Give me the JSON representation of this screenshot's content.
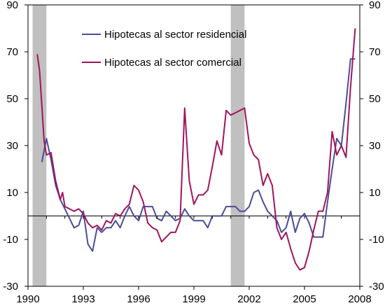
{
  "chart_data": {
    "type": "line",
    "title": "",
    "xlabel": "",
    "ylabel": "",
    "xlim": [
      1990,
      2008
    ],
    "ylim": [
      -30,
      90
    ],
    "x_ticks": [
      1990,
      1993,
      1996,
      1999,
      2002,
      2005,
      2008
    ],
    "x_tick_labels": [
      "1990",
      "1993",
      "1996",
      "1999",
      "2002",
      "2005",
      "2008"
    ],
    "y_ticks": [
      -30,
      -10,
      10,
      30,
      50,
      70,
      90
    ],
    "y_tick_labels": [
      "-30",
      "-10",
      "10",
      "30",
      "50",
      "70",
      "90"
    ],
    "grid": false,
    "zero_line": true,
    "legend_position": "top-center",
    "recession_shading": [
      [
        1990.25,
        1991.0
      ],
      [
        2001.0,
        2001.75
      ]
    ],
    "series": [
      {
        "name": "Hipotecas al sector residencial",
        "color": "#4b4c9a",
        "x": [
          1990.75,
          1991.0,
          1991.25,
          1991.5,
          1991.75,
          1992.0,
          1992.25,
          1992.5,
          1992.75,
          1993.0,
          1993.25,
          1993.5,
          1993.75,
          1994.0,
          1994.25,
          1994.5,
          1994.75,
          1995.0,
          1995.25,
          1995.5,
          1995.75,
          1996.0,
          1996.25,
          1996.5,
          1996.75,
          1997.0,
          1997.25,
          1997.5,
          1997.75,
          1998.0,
          1998.25,
          1998.5,
          1998.75,
          1999.0,
          1999.25,
          1999.5,
          1999.75,
          2000.0,
          2000.25,
          2000.5,
          2000.75,
          2001.0,
          2001.25,
          2001.5,
          2001.75,
          2002.0,
          2002.25,
          2002.5,
          2002.75,
          2003.0,
          2003.25,
          2003.5,
          2003.75,
          2004.0,
          2004.25,
          2004.5,
          2004.75,
          2005.0,
          2005.25,
          2005.5,
          2005.75,
          2006.0,
          2006.25,
          2006.5,
          2006.75,
          2007.0,
          2007.25,
          2007.5,
          2007.75
        ],
        "values": [
          23,
          33,
          24,
          13,
          7,
          3,
          -1,
          -5,
          -4,
          2,
          -12,
          -15,
          -5,
          -7,
          -5,
          -5,
          -2,
          -5,
          0,
          4,
          0,
          -2,
          4,
          4,
          4,
          -1,
          -2,
          2,
          0,
          -2,
          -1,
          3,
          0,
          -2,
          -2,
          -2,
          -5,
          0,
          0,
          0,
          4,
          4,
          4,
          2,
          2,
          4,
          10,
          11,
          6,
          2,
          0,
          -2,
          -7,
          -5,
          2,
          -7,
          -1,
          1,
          -3,
          -9,
          -9,
          -9,
          6,
          20,
          33,
          30,
          48,
          67,
          67
        ]
      },
      {
        "name": "Hipotecas al sector comercial",
        "color": "#a0155c",
        "x": [
          1990.5,
          1990.625,
          1990.75,
          1990.875,
          1991.0,
          1991.25,
          1991.5,
          1991.75,
          1991.875,
          1992.0,
          1992.25,
          1992.5,
          1992.75,
          1993.0,
          1993.25,
          1993.5,
          1993.75,
          1994.0,
          1994.25,
          1994.5,
          1994.75,
          1995.0,
          1995.25,
          1995.5,
          1995.75,
          1996.0,
          1996.25,
          1996.5,
          1996.75,
          1997.0,
          1997.25,
          1997.5,
          1997.75,
          1998.0,
          1998.25,
          1998.5,
          1998.75,
          1999.0,
          1999.25,
          1999.5,
          1999.75,
          2000.0,
          2000.25,
          2000.5,
          2000.75,
          2001.0,
          2001.25,
          2001.5,
          2001.75,
          2002.0,
          2002.25,
          2002.5,
          2002.75,
          2003.0,
          2003.25,
          2003.5,
          2003.75,
          2004.0,
          2004.25,
          2004.5,
          2004.75,
          2005.0,
          2005.25,
          2005.5,
          2005.75,
          2006.0,
          2006.25,
          2006.5,
          2006.75,
          2007.0,
          2007.25,
          2007.5,
          2007.75
        ],
        "values": [
          69,
          62,
          47,
          32,
          26,
          27,
          15,
          7,
          10,
          4,
          3,
          2,
          3,
          1,
          -3,
          -5,
          -4,
          -6,
          -2,
          -3,
          1,
          0,
          3,
          5,
          13,
          11,
          6,
          -3,
          -5,
          -6,
          -11,
          -9,
          -7,
          -7,
          -2,
          46,
          15,
          5,
          9,
          9,
          11,
          21,
          32,
          26,
          45,
          43,
          44,
          45,
          46,
          31,
          26,
          24,
          13,
          18,
          13,
          -5,
          -10,
          -7,
          -14,
          -20,
          -23,
          -22,
          -15,
          -6,
          2,
          2,
          10,
          36,
          26,
          30,
          25,
          55,
          80
        ]
      }
    ]
  }
}
